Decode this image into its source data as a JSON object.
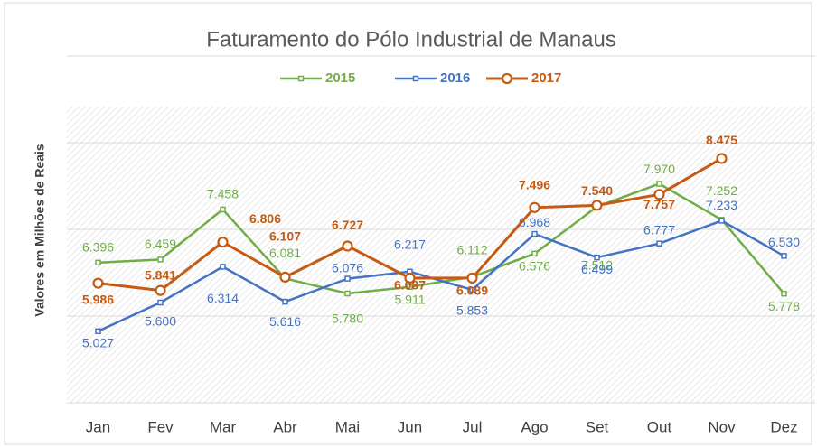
{
  "chart_data": {
    "type": "line",
    "title": "Faturamento do Pólo Industrial de Manaus",
    "y_label": "Valores em Milhões de Reais",
    "categories": [
      "Jan",
      "Fev",
      "Mar",
      "Abr",
      "Mai",
      "Jun",
      "Jul",
      "Ago",
      "Set",
      "Out",
      "Nov",
      "Dez"
    ],
    "series": [
      {
        "name": "2015",
        "color": "#70ad47",
        "marker": "square",
        "values": [
          6396,
          6459,
          7458,
          6081,
          5780,
          5911,
          6112,
          6576,
          7512,
          7970,
          7252,
          5778
        ],
        "value_labels": [
          "6.396",
          "6.459",
          "7.458",
          "6.081",
          "5.780",
          "5.911",
          "6.112",
          "6.576",
          "7.512",
          "7.970",
          "7.252",
          "5.778"
        ]
      },
      {
        "name": "2016",
        "color": "#4472c4",
        "marker": "square",
        "values": [
          5027,
          5600,
          6314,
          5616,
          6076,
          6217,
          5853,
          6968,
          6499,
          6777,
          7233,
          6530
        ],
        "value_labels": [
          "5.027",
          "5.600",
          "6.314",
          "5.616",
          "6.076",
          "6.217",
          "5.853",
          "6.968",
          "6.499",
          "6.777",
          "7.233",
          "6.530"
        ]
      },
      {
        "name": "2017",
        "color": "#c55a11",
        "marker": "circle",
        "values": [
          5986,
          5841,
          6806,
          6107,
          6727,
          6087,
          6089,
          7496,
          7540,
          7757,
          8475,
          null
        ],
        "value_labels": [
          "5.986",
          "5.841",
          "6.806",
          "6.107",
          "6.727",
          "6.087",
          "6.089",
          "7.496",
          "7.540",
          "7.757",
          "8.475",
          null
        ]
      }
    ],
    "ylim": [
      3600,
      10520
    ],
    "yticks": [
      3600,
      5330,
      7060,
      8790,
      10520
    ],
    "grid": true,
    "legend": "top"
  }
}
